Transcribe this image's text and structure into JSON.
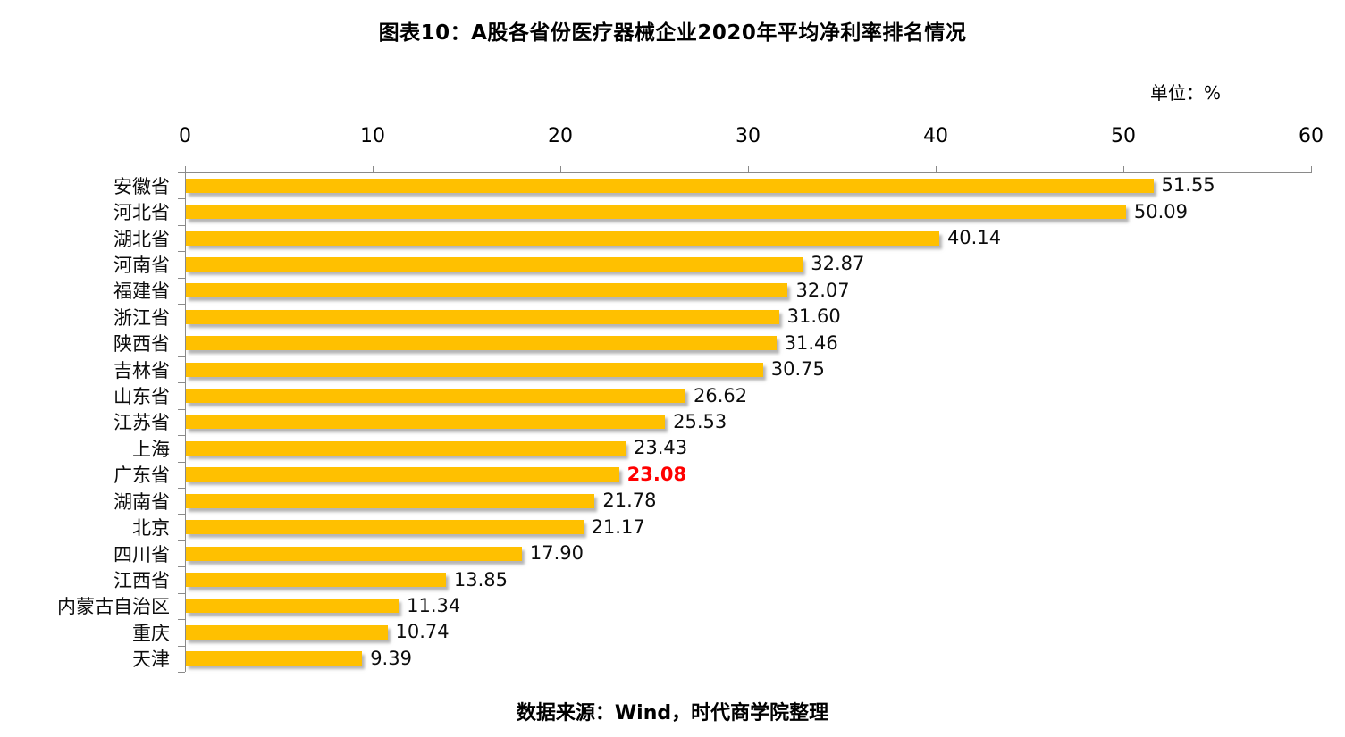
{
  "title": "图表10：A股各省份医疗器械企业2020年平均净利率排名情况",
  "unit_label": "单位：%",
  "source": "数据来源：Wind，时代商学院整理",
  "colors": {
    "bar": "#FFC000",
    "highlight_value": "#FF0000",
    "axis_line": "#8A8A8A",
    "text": "#000000"
  },
  "chart_data": {
    "type": "bar",
    "orientation": "horizontal",
    "title": "图表10：A股各省份医疗器械企业2020年平均净利率排名情况",
    "unit": "%",
    "xlabel": "",
    "ylabel": "",
    "xlim": [
      0,
      60
    ],
    "x_ticks": [
      "0",
      "10",
      "20",
      "30",
      "40",
      "50",
      "60"
    ],
    "axis_position": "top",
    "grid": false,
    "legend": false,
    "categories": [
      "安徽省",
      "河北省",
      "湖北省",
      "河南省",
      "福建省",
      "浙江省",
      "陕西省",
      "吉林省",
      "山东省",
      "江苏省",
      "上海",
      "广东省",
      "湖南省",
      "北京",
      "四川省",
      "江西省",
      "内蒙古自治区",
      "重庆",
      "天津"
    ],
    "values": [
      51.55,
      50.09,
      40.14,
      32.87,
      32.07,
      31.6,
      31.46,
      30.75,
      26.62,
      25.53,
      23.43,
      23.08,
      21.78,
      21.17,
      17.9,
      13.85,
      11.34,
      10.74,
      9.39
    ],
    "value_labels": [
      "51.55",
      "50.09",
      "40.14",
      "32.87",
      "32.07",
      "31.60",
      "31.46",
      "30.75",
      "26.62",
      "25.53",
      "23.43",
      "23.08",
      "21.78",
      "21.17",
      "17.90",
      "13.85",
      "11.34",
      "10.74",
      "9.39"
    ],
    "highlight": {
      "category": "广东省",
      "value_label": "23.08",
      "color": "#FF0000"
    }
  }
}
